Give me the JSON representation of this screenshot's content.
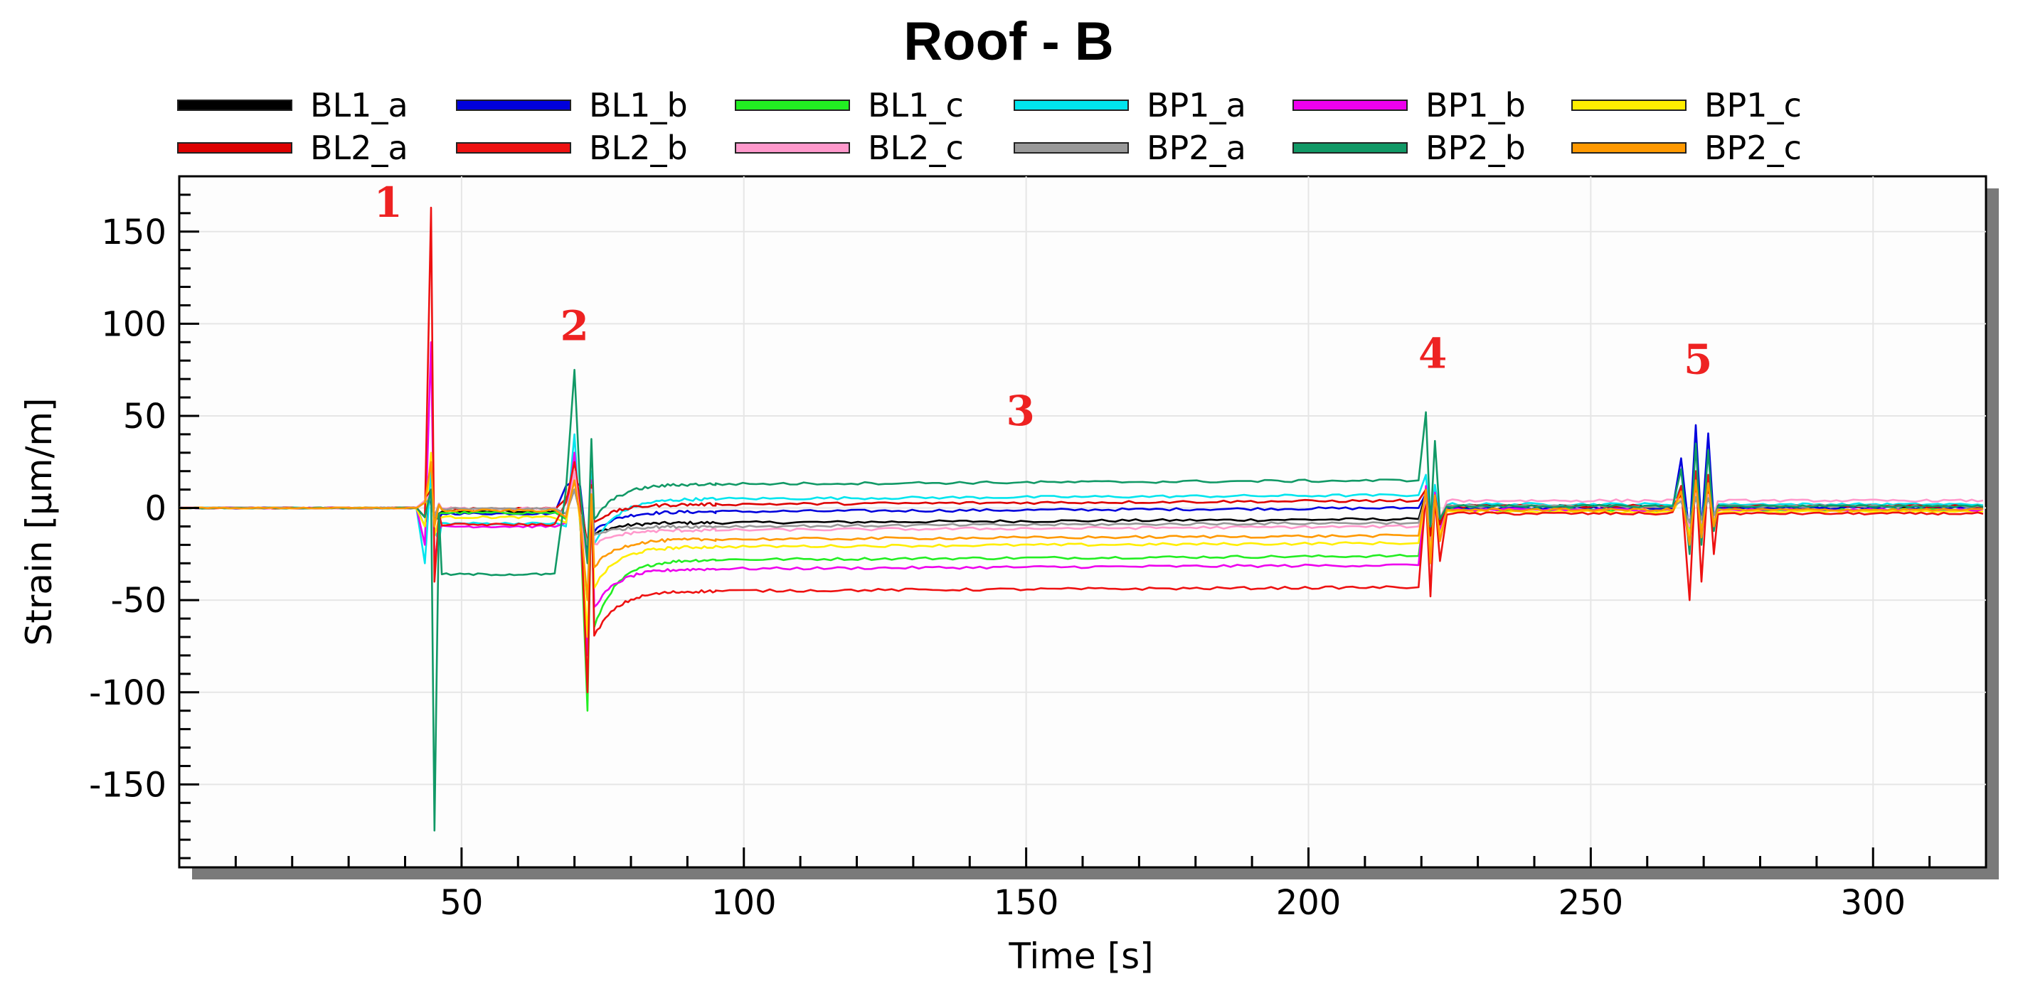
{
  "chart_data": {
    "type": "line",
    "title": "Roof - B",
    "xlabel": "Time [s]",
    "ylabel": "Strain [μm/m]",
    "xlim": [
      0,
      320
    ],
    "ylim": [
      -195,
      180
    ],
    "xticks": [
      50,
      100,
      150,
      200,
      250,
      300
    ],
    "yticks": [
      150,
      100,
      50,
      0,
      -50,
      -100,
      -150
    ],
    "grid": true,
    "legend_position": "top",
    "annotations": [
      {
        "text": "1",
        "x": 37,
        "y": 158
      },
      {
        "text": "2",
        "x": 70,
        "y": 91
      },
      {
        "text": "3",
        "x": 149,
        "y": 45
      },
      {
        "text": "4",
        "x": 222,
        "y": 76
      },
      {
        "text": "5",
        "x": 269,
        "y": 73
      }
    ],
    "series": [
      {
        "name": "BL1_a",
        "color": "#000000",
        "plateau": -8,
        "e1": [
          -5,
          6,
          -4
        ],
        "e2": [
          -3,
          10,
          -22
        ],
        "e4": [
          8,
          -12
        ],
        "e5": [
          6,
          -8
        ],
        "end": 1
      },
      {
        "name": "BL1_b",
        "color": "#0000dd",
        "plateau": -2,
        "e1": [
          -10,
          8,
          -5
        ],
        "e2": [
          12,
          15,
          -25
        ],
        "e4": [
          8,
          -10
        ],
        "e5": [
          45,
          -15
        ],
        "end": 0
      },
      {
        "name": "BL1_c",
        "color": "#22ee22",
        "plateau": -28,
        "e1": [
          -5,
          8,
          -8
        ],
        "e2": [
          -6,
          20,
          -110
        ],
        "e4": [
          5,
          -15
        ],
        "e5": [
          15,
          -20
        ],
        "end": -1
      },
      {
        "name": "BP1_a",
        "color": "#00e5ee",
        "plateau": 5,
        "e1": [
          -30,
          20,
          -12
        ],
        "e2": [
          -10,
          40,
          -50
        ],
        "e4": [
          18,
          -10
        ],
        "e5": [
          20,
          -12
        ],
        "end": 2
      },
      {
        "name": "BP1_b",
        "color": "#ee00ee",
        "plateau": -33,
        "e1": [
          -20,
          90,
          -30
        ],
        "e2": [
          -8,
          30,
          -80
        ],
        "e4": [
          12,
          -20
        ],
        "e5": [
          10,
          -20
        ],
        "end": -1
      },
      {
        "name": "BP1_c",
        "color": "#ffee00",
        "plateau": -21,
        "e1": [
          -10,
          30,
          -15
        ],
        "e2": [
          -8,
          20,
          -70
        ],
        "e4": [
          8,
          -25
        ],
        "e5": [
          10,
          -15
        ],
        "end": -2
      },
      {
        "name": "BL2_a",
        "color": "#dd0000",
        "plateau": 2,
        "e1": [
          4,
          10,
          -5
        ],
        "e2": [
          5,
          15,
          -20
        ],
        "e4": [
          10,
          -15
        ],
        "e5": [
          12,
          -10
        ],
        "end": 1
      },
      {
        "name": "BL2_b",
        "color": "#ee1111",
        "plateau": -45,
        "e1": [
          -5,
          163,
          -40
        ],
        "e2": [
          3,
          25,
          -100
        ],
        "e4": [
          8,
          -48
        ],
        "e5": [
          20,
          -50
        ],
        "end": -3
      },
      {
        "name": "BL2_c",
        "color": "#ff99cc",
        "plateau": -12,
        "e1": [
          4,
          8,
          -5
        ],
        "e2": [
          -5,
          20,
          -30
        ],
        "e4": [
          5,
          -10
        ],
        "e5": [
          8,
          -10
        ],
        "end": 4
      },
      {
        "name": "BP2_a",
        "color": "#999999",
        "plateau": -10,
        "e1": [
          3,
          5,
          -5
        ],
        "e2": [
          -3,
          10,
          -20
        ],
        "e4": [
          6,
          -10
        ],
        "e5": [
          6,
          -8
        ],
        "end": 1
      },
      {
        "name": "BP2_b",
        "color": "#119966",
        "plateau": 13,
        "e1": [
          -5,
          10,
          -175
        ],
        "e2": [
          10,
          75,
          -30
        ],
        "e4": [
          52,
          -10
        ],
        "e5": [
          35,
          -25
        ],
        "end": 1
      },
      {
        "name": "BP2_c",
        "color": "#ff9900",
        "plateau": -17,
        "e1": [
          3,
          25,
          -10
        ],
        "e2": [
          -5,
          15,
          -50
        ],
        "e4": [
          10,
          -30
        ],
        "e5": [
          15,
          -20
        ],
        "end": -1
      }
    ]
  }
}
